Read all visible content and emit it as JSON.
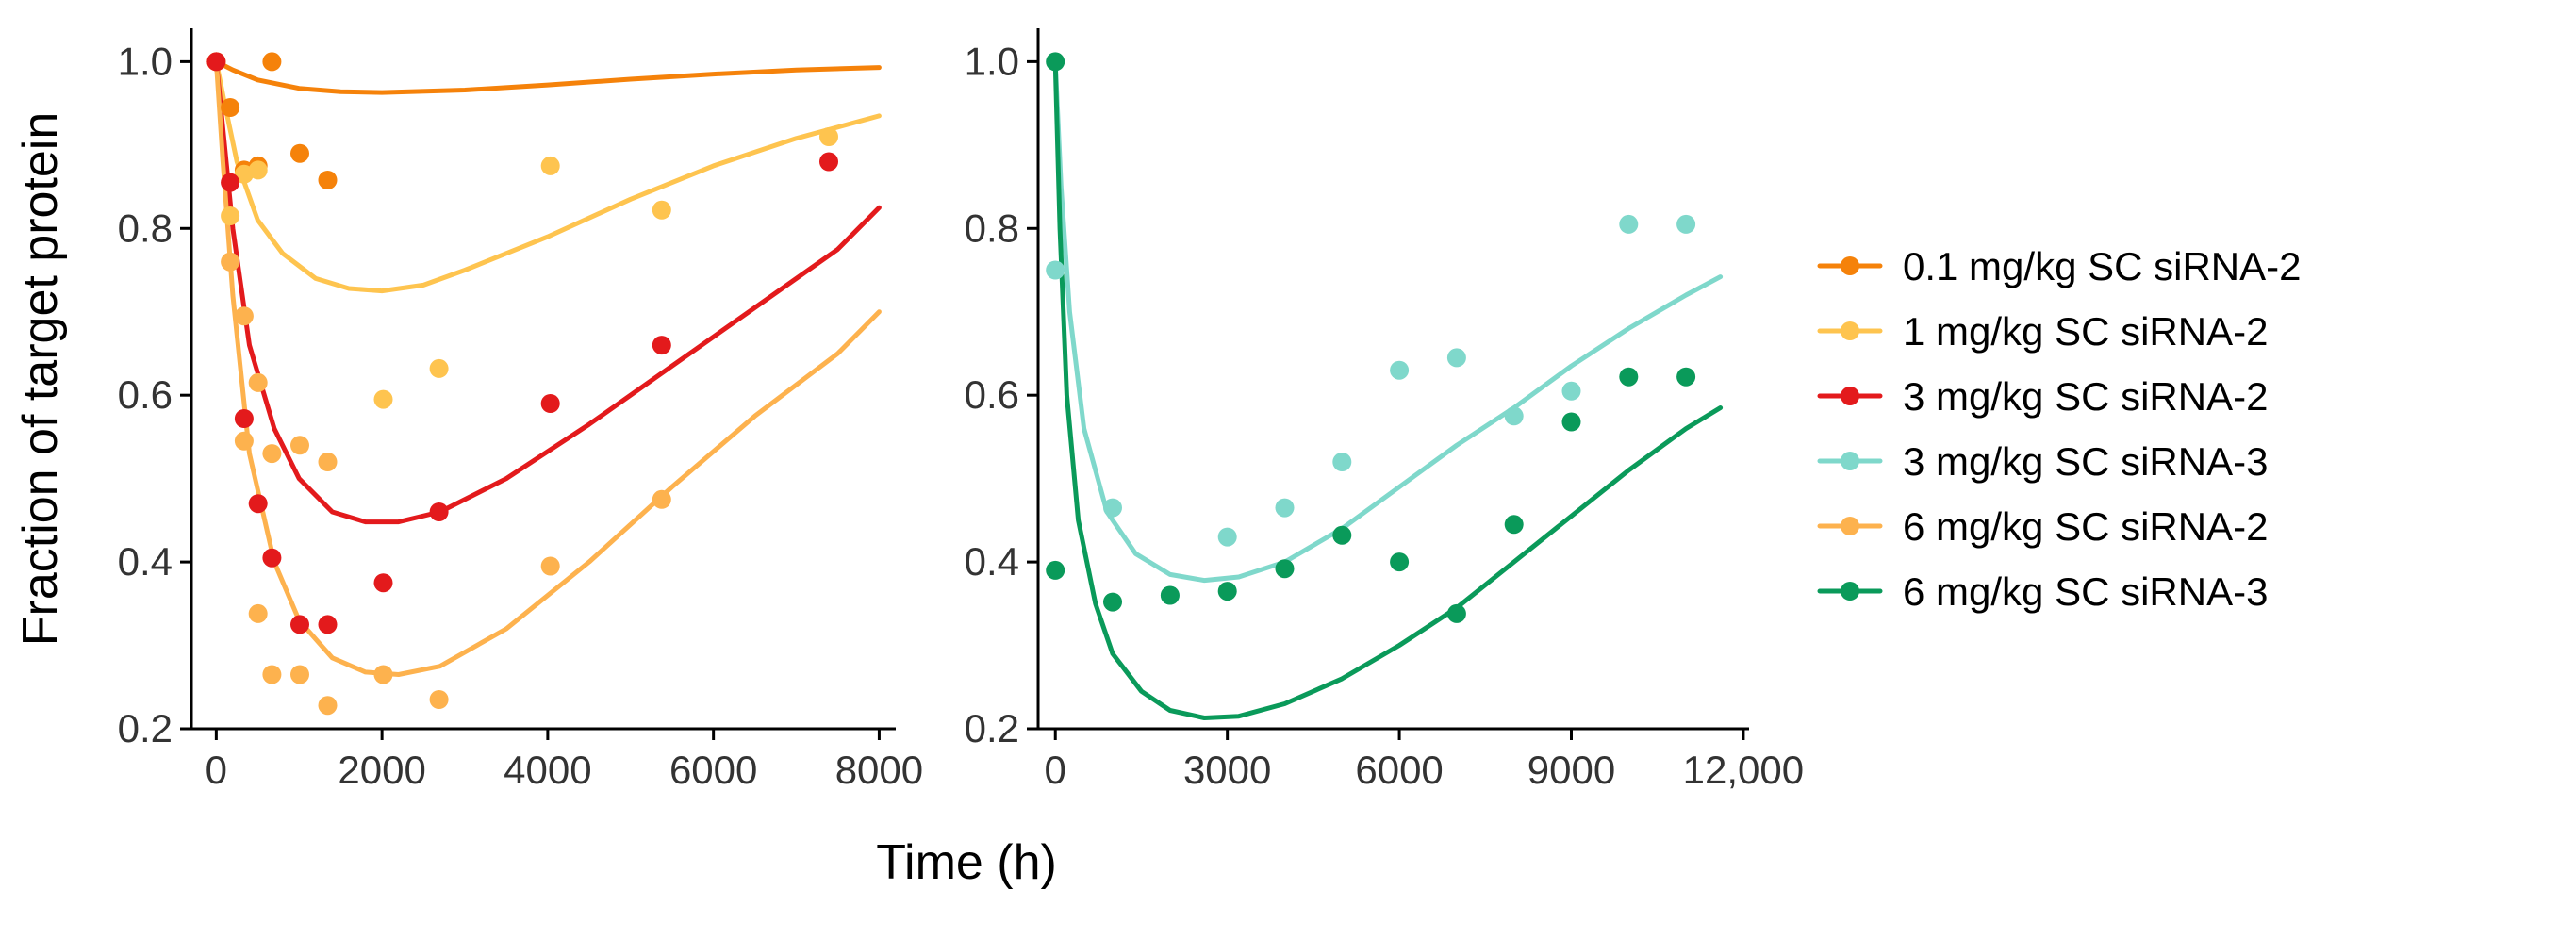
{
  "figure": {
    "ylabel": "Fraction of target protein",
    "xlabel": "Time (h)"
  },
  "legend": [
    {
      "label": "0.1 mg/kg SC siRNA-2",
      "color": "#F5820A"
    },
    {
      "label": "1 mg/kg SC siRNA-2",
      "color": "#FEC44F"
    },
    {
      "label": "3 mg/kg SC siRNA-2",
      "color": "#E31A1C"
    },
    {
      "label": "3 mg/kg SC siRNA-3",
      "color": "#7FD8CB"
    },
    {
      "label": "6 mg/kg SC siRNA-2",
      "color": "#FDB24E"
    },
    {
      "label": "6 mg/kg SC siRNA-3",
      "color": "#0A9A5A"
    }
  ],
  "chart_data": [
    {
      "type": "scatter",
      "panel": "left",
      "xlabel": "Time (h)",
      "ylabel": "Fraction of target protein",
      "xlim": [
        -300,
        8200
      ],
      "ylim": [
        0.2,
        1.04
      ],
      "xticks": [
        0,
        2000,
        4000,
        6000,
        8000
      ],
      "xtick_labels": [
        "0",
        "2000",
        "4000",
        "6000",
        "8000"
      ],
      "yticks": [
        0.2,
        0.4,
        0.6,
        0.8,
        1.0
      ],
      "ytick_labels": [
        "0.2",
        "0.4",
        "0.6",
        "0.8",
        "1.0"
      ],
      "series": [
        {
          "name": "0.1 mg/kg SC siRNA-2",
          "color": "#F5820A",
          "points": [
            [
              0,
              1.0
            ],
            [
              168,
              0.945
            ],
            [
              336,
              0.87
            ],
            [
              504,
              0.875
            ],
            [
              672,
              1.0
            ],
            [
              1008,
              0.89
            ],
            [
              1344,
              0.858
            ]
          ],
          "fit": [
            [
              0,
              1.0
            ],
            [
              200,
              0.99
            ],
            [
              500,
              0.978
            ],
            [
              1000,
              0.968
            ],
            [
              1500,
              0.964
            ],
            [
              2000,
              0.963
            ],
            [
              3000,
              0.966
            ],
            [
              4000,
              0.972
            ],
            [
              5000,
              0.979
            ],
            [
              6000,
              0.985
            ],
            [
              7000,
              0.99
            ],
            [
              8000,
              0.993
            ]
          ]
        },
        {
          "name": "1 mg/kg SC siRNA-2",
          "color": "#FEC44F",
          "points": [
            [
              0,
              1.0
            ],
            [
              168,
              0.815
            ],
            [
              336,
              0.865
            ],
            [
              504,
              0.87
            ],
            [
              2016,
              0.595
            ],
            [
              2688,
              0.632
            ],
            [
              4032,
              0.875
            ],
            [
              5376,
              0.822
            ],
            [
              7392,
              0.91
            ]
          ],
          "fit": [
            [
              0,
              1.0
            ],
            [
              100,
              0.95
            ],
            [
              250,
              0.88
            ],
            [
              500,
              0.81
            ],
            [
              800,
              0.77
            ],
            [
              1200,
              0.74
            ],
            [
              1600,
              0.728
            ],
            [
              2000,
              0.725
            ],
            [
              2500,
              0.732
            ],
            [
              3000,
              0.75
            ],
            [
              4000,
              0.79
            ],
            [
              5000,
              0.835
            ],
            [
              6000,
              0.875
            ],
            [
              7000,
              0.908
            ],
            [
              8000,
              0.935
            ]
          ]
        },
        {
          "name": "3 mg/kg SC siRNA-2",
          "color": "#E31A1C",
          "points": [
            [
              0,
              1.0
            ],
            [
              168,
              0.855
            ],
            [
              336,
              0.572
            ],
            [
              504,
              0.47
            ],
            [
              672,
              0.405
            ],
            [
              1008,
              0.325
            ],
            [
              1344,
              0.325
            ],
            [
              2016,
              0.375
            ],
            [
              2688,
              0.46
            ],
            [
              4032,
              0.59
            ],
            [
              5376,
              0.66
            ],
            [
              7392,
              0.88
            ]
          ],
          "fit": [
            [
              0,
              1.0
            ],
            [
              80,
              0.92
            ],
            [
              200,
              0.8
            ],
            [
              400,
              0.66
            ],
            [
              700,
              0.56
            ],
            [
              1000,
              0.5
            ],
            [
              1400,
              0.46
            ],
            [
              1800,
              0.448
            ],
            [
              2200,
              0.448
            ],
            [
              2700,
              0.46
            ],
            [
              3500,
              0.5
            ],
            [
              4500,
              0.565
            ],
            [
              5500,
              0.635
            ],
            [
              6500,
              0.705
            ],
            [
              7500,
              0.775
            ],
            [
              8000,
              0.825
            ]
          ]
        },
        {
          "name": "6 mg/kg SC siRNA-2",
          "color": "#FDB24E",
          "points": [
            [
              168,
              0.76
            ],
            [
              336,
              0.695
            ],
            [
              336,
              0.545
            ],
            [
              504,
              0.615
            ],
            [
              504,
              0.338
            ],
            [
              672,
              0.53
            ],
            [
              672,
              0.265
            ],
            [
              1008,
              0.54
            ],
            [
              1008,
              0.265
            ],
            [
              1344,
              0.52
            ],
            [
              1344,
              0.228
            ],
            [
              2016,
              0.265
            ],
            [
              2688,
              0.235
            ],
            [
              4032,
              0.395
            ],
            [
              5376,
              0.475
            ]
          ],
          "fit": [
            [
              0,
              1.0
            ],
            [
              80,
              0.88
            ],
            [
              200,
              0.72
            ],
            [
              400,
              0.53
            ],
            [
              700,
              0.4
            ],
            [
              1000,
              0.33
            ],
            [
              1400,
              0.285
            ],
            [
              1800,
              0.268
            ],
            [
              2200,
              0.265
            ],
            [
              2700,
              0.275
            ],
            [
              3500,
              0.32
            ],
            [
              4500,
              0.4
            ],
            [
              5500,
              0.49
            ],
            [
              6500,
              0.575
            ],
            [
              7500,
              0.65
            ],
            [
              8000,
              0.7
            ]
          ]
        }
      ]
    },
    {
      "type": "scatter",
      "panel": "right",
      "xlabel": "Time (h)",
      "ylim": [
        0.2,
        1.04
      ],
      "xlim": [
        -300,
        12100
      ],
      "xticks": [
        0,
        3000,
        6000,
        9000,
        12000
      ],
      "xtick_labels": [
        "0",
        "3000",
        "6000",
        "9000",
        "12,000"
      ],
      "yticks": [
        0.2,
        0.4,
        0.6,
        0.8,
        1.0
      ],
      "ytick_labels": [
        "0.2",
        "0.4",
        "0.6",
        "0.8",
        "1.0"
      ],
      "series": [
        {
          "name": "3 mg/kg SC siRNA-3",
          "color": "#7FD8CB",
          "points": [
            [
              0,
              0.75
            ],
            [
              1000,
              0.465
            ],
            [
              2000,
              0.36
            ],
            [
              3000,
              0.43
            ],
            [
              4000,
              0.465
            ],
            [
              5000,
              0.52
            ],
            [
              6000,
              0.63
            ],
            [
              7000,
              0.645
            ],
            [
              8000,
              0.575
            ],
            [
              9000,
              0.605
            ],
            [
              10000,
              0.805
            ],
            [
              11000,
              0.805
            ]
          ],
          "fit": [
            [
              0,
              1.0
            ],
            [
              100,
              0.85
            ],
            [
              250,
              0.7
            ],
            [
              500,
              0.56
            ],
            [
              900,
              0.46
            ],
            [
              1400,
              0.41
            ],
            [
              2000,
              0.385
            ],
            [
              2600,
              0.378
            ],
            [
              3200,
              0.382
            ],
            [
              4000,
              0.4
            ],
            [
              5000,
              0.44
            ],
            [
              6000,
              0.49
            ],
            [
              7000,
              0.54
            ],
            [
              8000,
              0.585
            ],
            [
              9000,
              0.635
            ],
            [
              10000,
              0.68
            ],
            [
              11000,
              0.72
            ],
            [
              11600,
              0.742
            ]
          ]
        },
        {
          "name": "6 mg/kg SC siRNA-3",
          "color": "#0A9A5A",
          "points": [
            [
              0,
              1.0
            ],
            [
              0,
              0.39
            ],
            [
              1000,
              0.352
            ],
            [
              2000,
              0.36
            ],
            [
              3000,
              0.365
            ],
            [
              4000,
              0.392
            ],
            [
              5000,
              0.432
            ],
            [
              6000,
              0.4
            ],
            [
              7000,
              0.338
            ],
            [
              8000,
              0.445
            ],
            [
              9000,
              0.568
            ],
            [
              10000,
              0.622
            ],
            [
              11000,
              0.622
            ]
          ],
          "fit": [
            [
              0,
              1.0
            ],
            [
              80,
              0.8
            ],
            [
              200,
              0.6
            ],
            [
              400,
              0.45
            ],
            [
              700,
              0.35
            ],
            [
              1000,
              0.29
            ],
            [
              1500,
              0.245
            ],
            [
              2000,
              0.222
            ],
            [
              2600,
              0.213
            ],
            [
              3200,
              0.215
            ],
            [
              4000,
              0.23
            ],
            [
              5000,
              0.26
            ],
            [
              6000,
              0.3
            ],
            [
              7000,
              0.345
            ],
            [
              8000,
              0.4
            ],
            [
              9000,
              0.455
            ],
            [
              10000,
              0.51
            ],
            [
              11000,
              0.56
            ],
            [
              11600,
              0.585
            ]
          ]
        }
      ]
    }
  ]
}
